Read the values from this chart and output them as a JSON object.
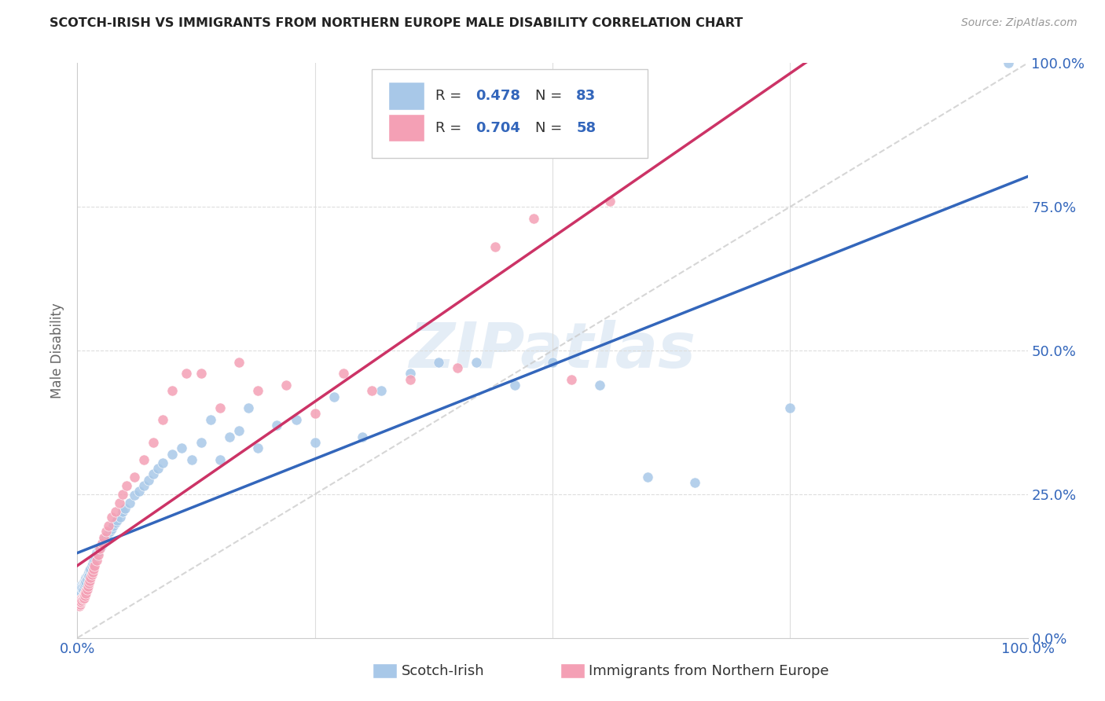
{
  "title": "SCOTCH-IRISH VS IMMIGRANTS FROM NORTHERN EUROPE MALE DISABILITY CORRELATION CHART",
  "source": "Source: ZipAtlas.com",
  "ylabel": "Male Disability",
  "series1_name": "Scotch-Irish",
  "series1_color": "#a8c8e8",
  "series1_R": 0.478,
  "series1_N": 83,
  "series1_line_color": "#3366bb",
  "series2_name": "Immigrants from Northern Europe",
  "series2_color": "#f4a0b5",
  "series2_line_color": "#cc3366",
  "series2_R": 0.704,
  "series2_N": 58,
  "diagonal_color": "#cccccc",
  "watermark": "ZIPatlas",
  "background_color": "#ffffff",
  "grid_color": "#dddddd",
  "title_color": "#222222",
  "source_color": "#999999",
  "axis_label_color": "#3366bb",
  "legend_text_color": "#3366bb",
  "scotch_irish_x": [
    0.001,
    0.002,
    0.002,
    0.003,
    0.003,
    0.003,
    0.004,
    0.004,
    0.004,
    0.005,
    0.005,
    0.005,
    0.006,
    0.006,
    0.006,
    0.007,
    0.007,
    0.008,
    0.008,
    0.009,
    0.009,
    0.01,
    0.01,
    0.011,
    0.012,
    0.012,
    0.013,
    0.014,
    0.015,
    0.016,
    0.017,
    0.018,
    0.019,
    0.02,
    0.022,
    0.023,
    0.025,
    0.027,
    0.028,
    0.03,
    0.032,
    0.034,
    0.036,
    0.038,
    0.04,
    0.042,
    0.045,
    0.048,
    0.05,
    0.055,
    0.06,
    0.065,
    0.07,
    0.075,
    0.08,
    0.085,
    0.09,
    0.1,
    0.11,
    0.12,
    0.13,
    0.14,
    0.15,
    0.16,
    0.17,
    0.18,
    0.19,
    0.21,
    0.23,
    0.25,
    0.27,
    0.3,
    0.32,
    0.35,
    0.38,
    0.42,
    0.46,
    0.5,
    0.55,
    0.6,
    0.65,
    0.75,
    0.98
  ],
  "scotch_irish_y": [
    0.08,
    0.085,
    0.078,
    0.082,
    0.088,
    0.075,
    0.09,
    0.083,
    0.079,
    0.086,
    0.092,
    0.088,
    0.095,
    0.09,
    0.083,
    0.098,
    0.093,
    0.1,
    0.095,
    0.105,
    0.098,
    0.108,
    0.102,
    0.11,
    0.115,
    0.108,
    0.118,
    0.12,
    0.125,
    0.13,
    0.135,
    0.138,
    0.142,
    0.148,
    0.15,
    0.155,
    0.16,
    0.165,
    0.17,
    0.175,
    0.18,
    0.185,
    0.19,
    0.195,
    0.2,
    0.205,
    0.21,
    0.22,
    0.225,
    0.235,
    0.248,
    0.255,
    0.265,
    0.275,
    0.285,
    0.295,
    0.305,
    0.32,
    0.33,
    0.31,
    0.34,
    0.38,
    0.31,
    0.35,
    0.36,
    0.4,
    0.33,
    0.37,
    0.38,
    0.34,
    0.42,
    0.35,
    0.43,
    0.46,
    0.48,
    0.48,
    0.44,
    0.48,
    0.44,
    0.28,
    0.27,
    0.4,
    1.0
  ],
  "northern_europe_x": [
    0.001,
    0.002,
    0.002,
    0.003,
    0.003,
    0.004,
    0.004,
    0.005,
    0.005,
    0.006,
    0.006,
    0.007,
    0.007,
    0.008,
    0.008,
    0.009,
    0.009,
    0.01,
    0.011,
    0.012,
    0.013,
    0.014,
    0.015,
    0.016,
    0.017,
    0.018,
    0.02,
    0.022,
    0.024,
    0.026,
    0.028,
    0.03,
    0.033,
    0.036,
    0.04,
    0.044,
    0.048,
    0.052,
    0.06,
    0.07,
    0.08,
    0.09,
    0.1,
    0.115,
    0.13,
    0.15,
    0.17,
    0.19,
    0.22,
    0.25,
    0.28,
    0.31,
    0.35,
    0.4,
    0.44,
    0.48,
    0.52,
    0.56
  ],
  "northern_europe_y": [
    0.06,
    0.055,
    0.065,
    0.058,
    0.062,
    0.068,
    0.063,
    0.07,
    0.065,
    0.072,
    0.068,
    0.075,
    0.07,
    0.078,
    0.073,
    0.082,
    0.077,
    0.085,
    0.09,
    0.095,
    0.1,
    0.105,
    0.11,
    0.115,
    0.12,
    0.125,
    0.135,
    0.145,
    0.155,
    0.165,
    0.175,
    0.185,
    0.195,
    0.21,
    0.22,
    0.235,
    0.25,
    0.265,
    0.28,
    0.31,
    0.34,
    0.38,
    0.43,
    0.46,
    0.46,
    0.4,
    0.48,
    0.43,
    0.44,
    0.39,
    0.46,
    0.43,
    0.45,
    0.47,
    0.68,
    0.73,
    0.45,
    0.76
  ],
  "xlim": [
    0.0,
    1.0
  ],
  "ylim": [
    0.0,
    1.0
  ],
  "xtick_positions": [
    0.0,
    0.25,
    0.5,
    0.75,
    1.0
  ],
  "xtick_labels": [
    "0.0%",
    "",
    "",
    "",
    "100.0%"
  ],
  "ytick_positions": [
    0.0,
    0.25,
    0.5,
    0.75,
    1.0
  ],
  "ytick_labels_right": [
    "0.0%",
    "25.0%",
    "50.0%",
    "75.0%",
    "100.0%"
  ]
}
